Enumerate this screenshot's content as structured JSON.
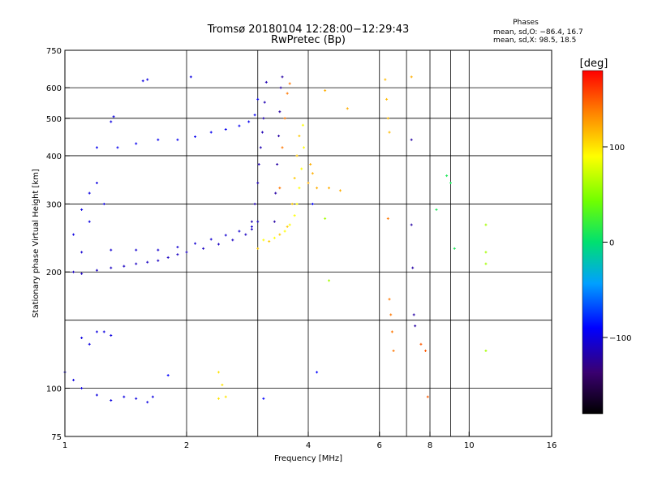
{
  "header": {
    "title_line1": "Tromsø 20180104 12:28:00−12:29:43",
    "title_line2": "RwPretec (Bp)",
    "phases_title": "Phases",
    "stat_o": "mean, sd,O: −86.4, 16.7",
    "stat_x": "mean, sd,X:  98.5, 18.5"
  },
  "colorbar": {
    "label": "[deg]",
    "ticks": [
      "100",
      "0",
      "−100"
    ]
  },
  "chart_data": {
    "type": "scatter",
    "xlabel": "Frequency [MHz]",
    "ylabel": "Stationary phase Virtual Height [km]",
    "xscale": "log",
    "yscale": "log",
    "xlim": [
      1,
      16
    ],
    "ylim": [
      75,
      750
    ],
    "xticks": [
      1,
      2,
      4,
      6,
      8,
      10,
      16
    ],
    "xtick_labels": [
      "1",
      "2",
      "4",
      "6",
      "8",
      "10",
      "16"
    ],
    "extra_vlines": [
      3,
      7,
      9
    ],
    "yticks": [
      75,
      100,
      200,
      300,
      400,
      500,
      600,
      750
    ],
    "ytick_labels": [
      "75",
      "100",
      "200",
      "300",
      "400",
      "500",
      "600",
      "750"
    ],
    "extra_hlines": [
      150
    ],
    "grid": true,
    "color_range": [
      -180,
      180
    ],
    "colorbar_ticks": [
      100,
      0,
      -100
    ],
    "series": [
      {
        "points": [
          [
            1.05,
            200
          ],
          [
            1.1,
            198
          ],
          [
            1.2,
            202
          ],
          [
            1.3,
            205
          ],
          [
            1.4,
            207
          ],
          [
            1.5,
            210
          ],
          [
            1.6,
            212
          ],
          [
            1.7,
            214
          ],
          [
            1.8,
            218
          ],
          [
            1.9,
            222
          ],
          [
            2.0,
            225
          ],
          [
            2.2,
            230
          ],
          [
            2.4,
            236
          ],
          [
            2.6,
            242
          ],
          [
            2.8,
            250
          ],
          [
            2.9,
            258
          ],
          [
            3.0,
            270
          ]
        ],
        "phase": -110
      },
      {
        "points": [
          [
            1.1,
            225
          ],
          [
            1.3,
            228
          ],
          [
            1.5,
            228
          ],
          [
            1.7,
            228
          ],
          [
            1.9,
            232
          ],
          [
            2.1,
            237
          ],
          [
            2.3,
            243
          ],
          [
            2.5,
            249
          ],
          [
            2.7,
            255
          ],
          [
            2.9,
            262
          ]
        ],
        "phase": -105
      },
      {
        "points": [
          [
            2.9,
            270
          ],
          [
            2.95,
            300
          ],
          [
            3.0,
            340
          ],
          [
            3.02,
            380
          ],
          [
            3.05,
            420
          ],
          [
            3.08,
            460
          ],
          [
            3.1,
            500
          ],
          [
            3.12,
            550
          ],
          [
            3.15,
            620
          ]
        ],
        "phase": -115
      },
      {
        "points": [
          [
            3.3,
            270
          ],
          [
            3.32,
            320
          ],
          [
            3.35,
            380
          ],
          [
            3.38,
            450
          ],
          [
            3.4,
            520
          ],
          [
            3.42,
            600
          ],
          [
            3.45,
            640
          ]
        ],
        "phase": -120
      },
      {
        "points": [
          [
            1.2,
            420
          ],
          [
            1.35,
            420
          ],
          [
            1.5,
            430
          ],
          [
            1.7,
            440
          ],
          [
            1.9,
            440
          ],
          [
            2.1,
            448
          ],
          [
            2.3,
            460
          ],
          [
            2.5,
            468
          ],
          [
            2.7,
            478
          ],
          [
            2.85,
            490
          ],
          [
            2.95,
            510
          ],
          [
            3.0,
            560
          ]
        ],
        "phase": -95
      },
      {
        "points": [
          [
            1.1,
            290
          ],
          [
            1.15,
            320
          ],
          [
            1.2,
            340
          ],
          [
            1.25,
            300
          ],
          [
            1.15,
            270
          ],
          [
            1.05,
            250
          ]
        ],
        "phase": -100
      },
      {
        "points": [
          [
            1.3,
            490
          ],
          [
            1.32,
            505
          ],
          [
            1.56,
            625
          ],
          [
            1.6,
            630
          ],
          [
            2.05,
            640
          ]
        ],
        "phase": -100
      },
      {
        "points": [
          [
            1.0,
            110
          ],
          [
            1.05,
            105
          ],
          [
            1.1,
            100
          ],
          [
            1.2,
            96
          ],
          [
            1.3,
            93
          ],
          [
            1.4,
            95
          ],
          [
            1.5,
            94
          ],
          [
            1.6,
            92
          ],
          [
            1.65,
            95
          ],
          [
            1.1,
            135
          ],
          [
            1.15,
            130
          ],
          [
            1.2,
            140
          ],
          [
            1.25,
            140
          ],
          [
            1.3,
            137
          ]
        ],
        "phase": -100
      },
      {
        "points": [
          [
            3.1,
            242
          ],
          [
            3.3,
            245
          ],
          [
            3.5,
            255
          ],
          [
            3.6,
            265
          ],
          [
            3.7,
            280
          ],
          [
            3.75,
            300
          ],
          [
            3.8,
            330
          ],
          [
            3.85,
            370
          ],
          [
            3.9,
            420
          ],
          [
            3.88,
            480
          ]
        ],
        "phase": 90
      },
      {
        "points": [
          [
            3.0,
            230
          ],
          [
            3.2,
            240
          ],
          [
            3.4,
            250
          ],
          [
            3.55,
            262
          ],
          [
            3.65,
            300
          ],
          [
            3.7,
            350
          ],
          [
            3.75,
            400
          ],
          [
            3.8,
            450
          ]
        ],
        "phase": 110
      },
      {
        "points": [
          [
            3.4,
            330
          ],
          [
            3.45,
            420
          ],
          [
            3.5,
            500
          ],
          [
            3.55,
            580
          ],
          [
            3.6,
            615
          ]
        ],
        "phase": 140
      },
      {
        "points": [
          [
            4.0,
            340
          ],
          [
            4.05,
            380
          ],
          [
            4.1,
            360
          ],
          [
            4.2,
            330
          ],
          [
            4.5,
            330
          ],
          [
            4.8,
            325
          ]
        ],
        "phase": 120
      },
      {
        "points": [
          [
            2.4,
            94
          ],
          [
            2.5,
            95
          ],
          [
            2.45,
            102
          ],
          [
            2.4,
            110
          ]
        ],
        "phase": 100
      },
      {
        "points": [
          [
            6.2,
            630
          ],
          [
            6.25,
            560
          ],
          [
            6.3,
            500
          ],
          [
            6.35,
            460
          ]
        ],
        "phase": 115
      },
      {
        "points": [
          [
            7.2,
            640
          ],
          [
            4.4,
            590
          ],
          [
            5.0,
            530
          ]
        ],
        "phase": 120
      },
      {
        "points": [
          [
            6.3,
            275
          ],
          [
            6.35,
            170
          ],
          [
            6.4,
            155
          ],
          [
            6.45,
            140
          ],
          [
            6.5,
            125
          ]
        ],
        "phase": 140
      },
      {
        "points": [
          [
            7.2,
            265
          ],
          [
            7.25,
            205
          ],
          [
            7.3,
            155
          ],
          [
            7.35,
            145
          ],
          [
            7.2,
            440
          ]
        ],
        "phase": -120
      },
      {
        "points": [
          [
            4.1,
            300
          ],
          [
            4.2,
            110
          ],
          [
            3.1,
            94
          ],
          [
            1.8,
            108
          ]
        ],
        "phase": -90
      },
      {
        "points": [
          [
            7.8,
            125
          ],
          [
            7.6,
            130
          ],
          [
            7.9,
            95
          ]
        ],
        "phase": 150
      },
      {
        "points": [
          [
            8.3,
            290
          ],
          [
            8.8,
            355
          ],
          [
            9.0,
            340
          ],
          [
            9.2,
            230
          ]
        ],
        "phase": 10
      },
      {
        "points": [
          [
            11.0,
            265
          ],
          [
            11.0,
            225
          ],
          [
            11.0,
            210
          ],
          [
            11.0,
            125
          ]
        ],
        "phase": 60
      },
      {
        "points": [
          [
            4.5,
            190
          ],
          [
            4.4,
            275
          ]
        ],
        "phase": 60
      }
    ]
  }
}
